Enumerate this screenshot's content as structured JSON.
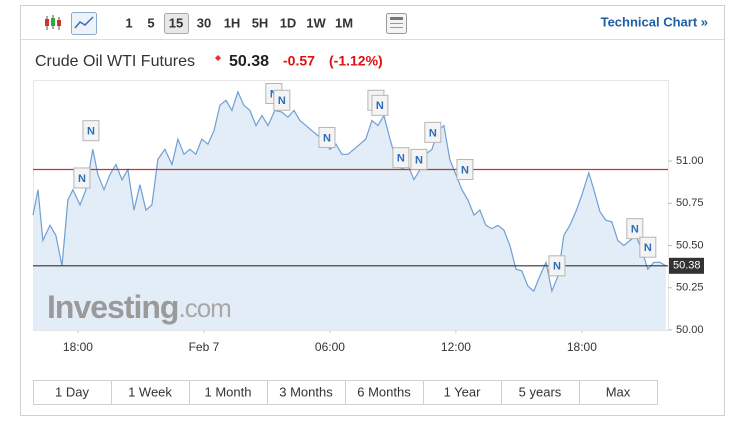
{
  "toolbar": {
    "intervals": [
      {
        "label": "1"
      },
      {
        "label": "5"
      },
      {
        "label": "15",
        "selected": true
      },
      {
        "label": "30"
      },
      {
        "label": "1H"
      },
      {
        "label": "5H"
      },
      {
        "label": "1D"
      },
      {
        "label": "1W"
      },
      {
        "label": "1M"
      }
    ],
    "link": "Technical Chart »"
  },
  "header": {
    "name": "Crude Oil WTI Futures",
    "price": "50.38",
    "change": "-0.57",
    "change_percent": "(-1.12%)"
  },
  "watermark": {
    "brand": "Investing",
    "suffix": ".com"
  },
  "chart_data": {
    "type": "area",
    "x": [
      -8.14,
      -7.9,
      -7.67,
      -7.33,
      -7.05,
      -6.76,
      -6.48,
      -6.24,
      -5.9,
      -5.62,
      -5.29,
      -5.05,
      -4.76,
      -4.48,
      -4.19,
      -3.9,
      -3.62,
      -3.33,
      -3.05,
      -2.76,
      -2.48,
      -2.19,
      -1.86,
      -1.52,
      -1.24,
      -0.95,
      -0.67,
      -0.38,
      -0.1,
      0.19,
      0.48,
      0.76,
      1.05,
      1.33,
      1.62,
      1.9,
      2.19,
      2.48,
      2.76,
      3.05,
      3.38,
      3.71,
      4.0,
      4.29,
      4.57,
      4.86,
      5.14,
      5.43,
      5.71,
      6.0,
      6.29,
      6.57,
      6.86,
      7.14,
      7.43,
      7.71,
      8.0,
      8.29,
      8.57,
      8.86,
      9.14,
      9.43,
      9.71,
      10.0,
      10.29,
      10.57,
      10.86,
      11.14,
      11.43,
      11.71,
      12.0,
      12.29,
      12.57,
      12.86,
      13.14,
      13.43,
      13.71,
      14.0,
      14.29,
      14.57,
      14.86,
      15.14,
      15.43,
      15.71,
      16.0,
      16.29,
      16.57,
      16.86,
      17.14,
      17.43,
      17.71,
      18.0,
      18.33,
      18.57,
      18.86,
      19.14,
      19.43,
      19.71,
      20.0,
      20.29,
      20.57,
      20.86,
      21.14,
      21.43,
      21.71,
      22.0
    ],
    "series": [
      {
        "color": "#6f9fd3",
        "fill": "#e3edf7",
        "values": [
          50.68,
          50.83,
          50.53,
          50.62,
          50.56,
          50.38,
          50.77,
          50.83,
          50.74,
          50.83,
          51.07,
          50.92,
          50.83,
          50.92,
          50.98,
          50.89,
          50.95,
          50.71,
          50.86,
          50.71,
          50.74,
          51.01,
          51.07,
          50.98,
          51.13,
          51.04,
          51.07,
          51.04,
          51.13,
          51.1,
          51.18,
          51.33,
          51.36,
          51.3,
          51.41,
          51.33,
          51.3,
          51.21,
          51.27,
          51.21,
          51.3,
          51.29,
          51.26,
          51.3,
          51.24,
          51.21,
          51.18,
          51.15,
          51.13,
          51.07,
          51.1,
          51.04,
          51.04,
          51.07,
          51.1,
          51.13,
          51.24,
          51.21,
          51.27,
          51.13,
          51.01,
          50.95,
          50.98,
          50.89,
          50.95,
          51.04,
          51.07,
          51.18,
          51.21,
          51.01,
          50.92,
          50.83,
          50.77,
          50.68,
          50.71,
          50.62,
          50.6,
          50.62,
          50.59,
          50.5,
          50.36,
          50.35,
          50.26,
          50.23,
          50.32,
          50.4,
          50.23,
          50.32,
          50.56,
          50.62,
          50.7,
          50.8,
          50.93,
          50.83,
          50.7,
          50.65,
          50.64,
          50.53,
          50.5,
          50.53,
          50.56,
          50.47,
          50.36,
          50.4,
          50.4,
          50.38
        ]
      }
    ],
    "xlim": [
      -8.14,
      22.1
    ],
    "xticks": [
      {
        "value": -6,
        "label": "18:00"
      },
      {
        "value": 0,
        "label": "Feb 7"
      },
      {
        "value": 6,
        "label": "06:00"
      },
      {
        "value": 12,
        "label": "12:00"
      },
      {
        "value": 18,
        "label": "18:00"
      }
    ],
    "ylim": [
      50,
      51.48
    ],
    "yticks": [
      {
        "value": 51,
        "label": "51.00"
      },
      50.75,
      {
        "value": 50.5,
        "label": "50.50"
      },
      50.25,
      {
        "value": 50,
        "label": "50.00"
      }
    ],
    "reference_lines": [
      {
        "value": 50.95,
        "color": "#c0392b"
      },
      {
        "value": 50.38,
        "color": "#333333"
      }
    ],
    "news_markers": [
      {
        "x": -5.38,
        "y": 51.18,
        "label": "N"
      },
      {
        "x": -5.81,
        "y": 50.9,
        "label": "N"
      },
      {
        "x": 3.33,
        "y": 51.4,
        "label": "N"
      },
      {
        "x": 3.71,
        "y": 51.36,
        "label": "N"
      },
      {
        "x": 5.86,
        "y": 51.14,
        "label": "N"
      },
      {
        "x": 8.19,
        "y": 51.36,
        "label": "N"
      },
      {
        "x": 8.38,
        "y": 51.33,
        "label": "N"
      },
      {
        "x": 9.38,
        "y": 51.02,
        "label": "N"
      },
      {
        "x": 10.24,
        "y": 51.01,
        "label": "N"
      },
      {
        "x": 10.9,
        "y": 51.17,
        "label": "N"
      },
      {
        "x": 12.43,
        "y": 50.95,
        "label": "N"
      },
      {
        "x": 16.81,
        "y": 50.38,
        "label": "N"
      },
      {
        "x": 20.52,
        "y": 50.6,
        "label": "N"
      },
      {
        "x": 21.14,
        "y": 50.49,
        "label": "N"
      }
    ]
  },
  "ranges": [
    "1 Day",
    "1 Week",
    "1 Month",
    "3 Months",
    "6 Months",
    "1 Year",
    "5 years",
    "Max"
  ]
}
